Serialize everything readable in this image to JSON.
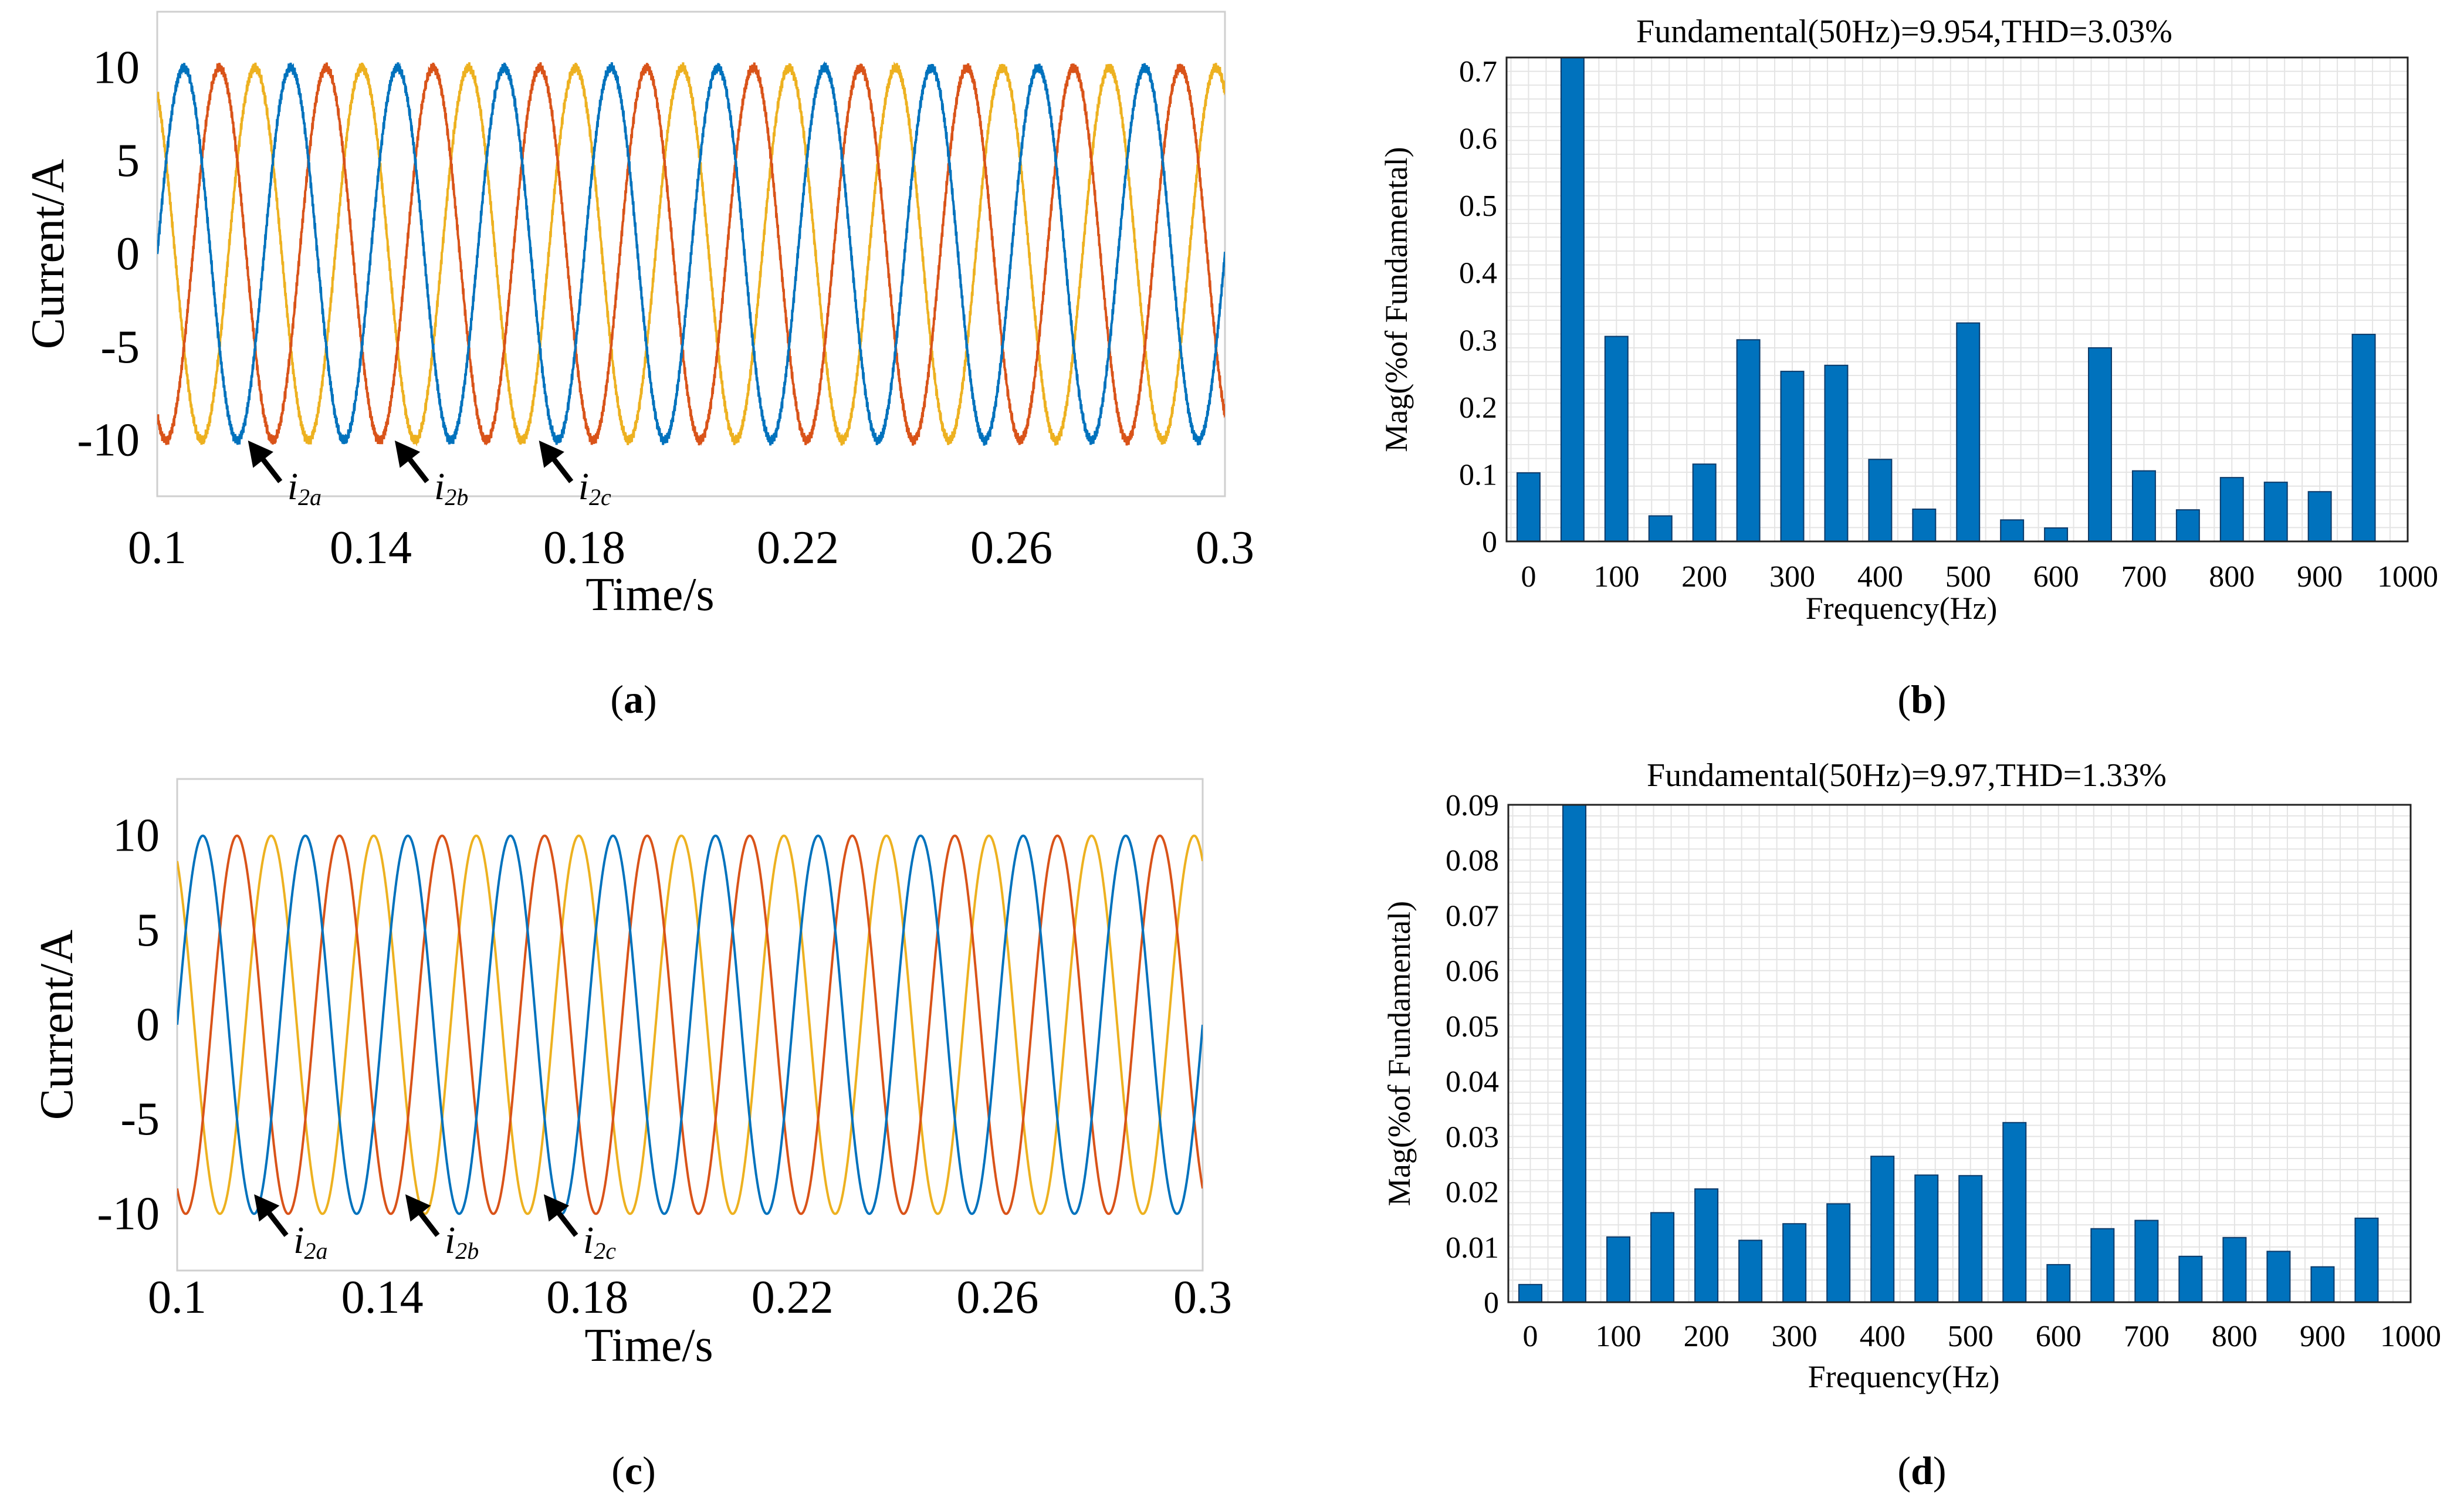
{
  "colors": {
    "phase_a": "#0072BD",
    "phase_b": "#D95319",
    "phase_c": "#EDB120",
    "bar": "#0072BD",
    "bar_edge": "#0b3a6a",
    "grid": "#e4e4e4"
  },
  "chart_data": [
    {
      "id": "a",
      "type": "line",
      "caption_letter": "a",
      "xlabel": "Time/s",
      "ylabel": "Current/A",
      "xlim": [
        0.1,
        0.3
      ],
      "ylim": [
        -13,
        13
      ],
      "x_ticks": [
        "0.1",
        "0.14",
        "0.18",
        "0.22",
        "0.26",
        "0.3"
      ],
      "y_ticks": [
        "10",
        "5",
        "0",
        "-5",
        "-10"
      ],
      "amplitude": 10,
      "frequency_hz": 50,
      "ripple": 0.3,
      "series": [
        {
          "name": "i2a",
          "label_main": "i",
          "label_sub": "2a",
          "phase_deg": 0
        },
        {
          "name": "i2b",
          "label_main": "i",
          "label_sub": "2b",
          "phase_deg": -120
        },
        {
          "name": "i2c",
          "label_main": "i",
          "label_sub": "2c",
          "phase_deg": 120
        }
      ],
      "annotation_times": [
        0.117,
        0.1445,
        0.1715
      ]
    },
    {
      "id": "b",
      "type": "bar",
      "caption_letter": "b",
      "title": "Fundamental(50Hz)=9.954,THD=3.03%",
      "xlabel": "Frequency(Hz)",
      "ylabel": "Mag(%of Fundamental)",
      "xlim": [
        -25,
        1000
      ],
      "ylim": [
        0,
        0.72
      ],
      "x_ticks": [
        "0",
        "100",
        "200",
        "300",
        "400",
        "500",
        "600",
        "700",
        "800",
        "900",
        "1000"
      ],
      "y_ticks": [
        "0",
        "0.1",
        "0.2",
        "0.3",
        "0.4",
        "0.5",
        "0.6",
        "0.7"
      ],
      "frequencies": [
        0,
        50,
        100,
        150,
        200,
        250,
        300,
        350,
        400,
        450,
        500,
        550,
        600,
        650,
        700,
        750,
        800,
        850,
        900,
        950
      ],
      "values": [
        0.102,
        0.72,
        0.305,
        0.038,
        0.115,
        0.3,
        0.253,
        0.262,
        0.122,
        0.048,
        0.325,
        0.032,
        0.02,
        0.288,
        0.105,
        0.047,
        0.095,
        0.088,
        0.074,
        0.308
      ]
    },
    {
      "id": "c",
      "type": "line",
      "caption_letter": "c",
      "xlabel": "Time/s",
      "ylabel": "Current/A",
      "xlim": [
        0.1,
        0.3
      ],
      "ylim": [
        -13,
        13
      ],
      "x_ticks": [
        "0.1",
        "0.14",
        "0.18",
        "0.22",
        "0.26",
        "0.3"
      ],
      "y_ticks": [
        "10",
        "5",
        "0",
        "-5",
        "-10"
      ],
      "amplitude": 10,
      "frequency_hz": 50,
      "ripple": 0,
      "series": [
        {
          "name": "i2a",
          "label_main": "i",
          "label_sub": "2a",
          "phase_deg": 0
        },
        {
          "name": "i2b",
          "label_main": "i",
          "label_sub": "2b",
          "phase_deg": -120
        },
        {
          "name": "i2c",
          "label_main": "i",
          "label_sub": "2c",
          "phase_deg": 120
        }
      ],
      "annotation_times": [
        0.115,
        0.1445,
        0.1715
      ]
    },
    {
      "id": "d",
      "type": "bar",
      "caption_letter": "d",
      "title": "Fundamental(50Hz)=9.97,THD=1.33%",
      "xlabel": "Frequency(Hz)",
      "ylabel": "Mag(%of Fundamental)",
      "xlim": [
        -25,
        1000
      ],
      "ylim": [
        0,
        0.09
      ],
      "x_ticks": [
        "0",
        "100",
        "200",
        "300",
        "400",
        "500",
        "600",
        "700",
        "800",
        "900",
        "1000"
      ],
      "y_ticks": [
        "0",
        "0.01",
        "0.02",
        "0.03",
        "0.04",
        "0.05",
        "0.06",
        "0.07",
        "0.08",
        "0.09"
      ],
      "frequencies": [
        0,
        50,
        100,
        150,
        200,
        250,
        300,
        350,
        400,
        450,
        500,
        550,
        600,
        650,
        700,
        750,
        800,
        850,
        900,
        950
      ],
      "values": [
        0.0032,
        0.09,
        0.0118,
        0.0162,
        0.0205,
        0.0112,
        0.0142,
        0.0178,
        0.0264,
        0.023,
        0.0229,
        0.0325,
        0.0068,
        0.0133,
        0.0148,
        0.0083,
        0.0117,
        0.0092,
        0.0064,
        0.0152
      ]
    }
  ]
}
